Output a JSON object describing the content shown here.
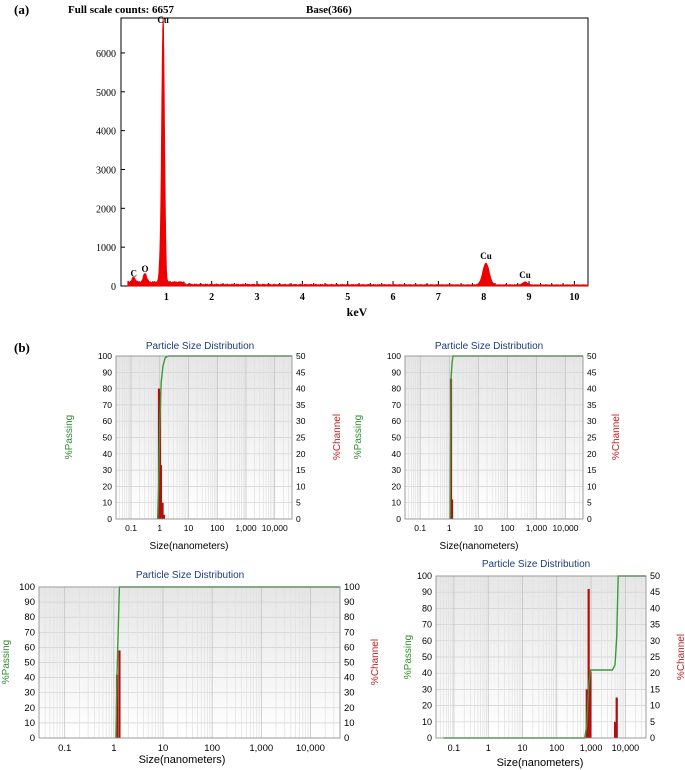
{
  "figure": {
    "panel_a_label": "(a)",
    "panel_b_label": "(b)"
  },
  "chart_data": [
    {
      "type": "line",
      "panel": "(a)",
      "header_left": "Full scale counts: 6657",
      "header_right": "Base(366)",
      "xlabel": "keV",
      "ylabel": "",
      "xlim": [
        0,
        10.3
      ],
      "ylim": [
        0,
        6900
      ],
      "x_ticks": [
        1,
        2,
        3,
        4,
        5,
        6,
        7,
        8,
        9,
        10
      ],
      "y_ticks": [
        0,
        1000,
        2000,
        3000,
        4000,
        5000,
        6000
      ],
      "color": "#ee0000",
      "peaks": [
        {
          "label": "C",
          "x": 0.28,
          "y": 120
        },
        {
          "label": "O",
          "x": 0.53,
          "y": 230
        },
        {
          "label": "Cu",
          "x": 0.93,
          "y": 6640
        },
        {
          "label": "Cu",
          "x": 8.05,
          "y": 560
        },
        {
          "label": "Cu",
          "x": 8.91,
          "y": 75
        }
      ]
    },
    {
      "type": "bar",
      "title": "Particle Size Distribution",
      "xlabel": "Size(nanometers)",
      "ylabel_left": "%Passing",
      "ylabel_right": "%Channel",
      "x_scale": "log",
      "xlim": [
        0.03,
        40000
      ],
      "x_ticks": [
        "0.1",
        "1",
        "10",
        "100",
        "1,000",
        "10,000"
      ],
      "y_left": [
        0,
        10,
        20,
        30,
        40,
        50,
        60,
        70,
        80,
        90,
        100
      ],
      "y_right": [
        0,
        5,
        10,
        15,
        20,
        25,
        30,
        35,
        40,
        45,
        50
      ],
      "channel_bars": [
        {
          "x": 0.94,
          "y": 40
        },
        {
          "x": 1.02,
          "y": 39
        },
        {
          "x": 1.1,
          "y": 16.5
        },
        {
          "x": 1.25,
          "y": 5
        },
        {
          "x": 1.4,
          "y": 1.3
        }
      ],
      "passing_line": [
        {
          "x": 0.84,
          "y": 0
        },
        {
          "x": 0.92,
          "y": 22
        },
        {
          "x": 1.0,
          "y": 58
        },
        {
          "x": 1.12,
          "y": 84
        },
        {
          "x": 1.3,
          "y": 94
        },
        {
          "x": 1.55,
          "y": 99
        },
        {
          "x": 2.0,
          "y": 100
        },
        {
          "x": 40000,
          "y": 100
        }
      ]
    },
    {
      "type": "bar",
      "title": "Particle Size Distribution",
      "xlabel": "Size(nanometers)",
      "ylabel_left": "%Passing",
      "ylabel_right": "%Channel",
      "x_scale": "log",
      "xlim": [
        0.03,
        40000
      ],
      "x_ticks": [
        "0.1",
        "1",
        "10",
        "100",
        "1,000",
        "10,000"
      ],
      "y_left": [
        0,
        10,
        20,
        30,
        40,
        50,
        60,
        70,
        80,
        90,
        100
      ],
      "y_right": [
        0,
        5,
        10,
        15,
        20,
        25,
        30,
        35,
        40,
        45,
        50
      ],
      "channel_bars": [
        {
          "x": 1.15,
          "y": 43
        },
        {
          "x": 1.25,
          "y": 6
        }
      ],
      "passing_line": [
        {
          "x": 1.08,
          "y": 0
        },
        {
          "x": 1.15,
          "y": 86
        },
        {
          "x": 1.25,
          "y": 96
        },
        {
          "x": 1.35,
          "y": 100
        },
        {
          "x": 40000,
          "y": 100
        }
      ]
    },
    {
      "type": "bar",
      "title": "Particle Size Distribution",
      "xlabel": "Size(nanometers)",
      "ylabel_left": "%Passing",
      "ylabel_right": "%Channel",
      "x_scale": "log",
      "xlim": [
        0.03,
        40000
      ],
      "x_ticks": [
        "0.1",
        "1",
        "10",
        "100",
        "1,000",
        "10,000"
      ],
      "y_left": [
        0,
        10,
        20,
        30,
        40,
        50,
        60,
        70,
        80,
        90,
        100
      ],
      "y_right": [
        0,
        10,
        20,
        30,
        40,
        50,
        60,
        70,
        80,
        90,
        100
      ],
      "channel_bars": [
        {
          "x": 1.16,
          "y": 42
        },
        {
          "x": 1.3,
          "y": 58
        }
      ],
      "passing_line": [
        {
          "x": 1.1,
          "y": 0
        },
        {
          "x": 1.16,
          "y": 42
        },
        {
          "x": 1.3,
          "y": 100
        },
        {
          "x": 40000,
          "y": 100
        }
      ]
    },
    {
      "type": "bar",
      "title": "Particle Size Distribution",
      "xlabel": "Size(nanometers)",
      "ylabel_left": "%Passing",
      "ylabel_right": "%Channel",
      "x_scale": "log",
      "xlim": [
        0.03,
        40000
      ],
      "x_ticks": [
        "0.1",
        "1",
        "10",
        "100",
        "1,000",
        "10,000"
      ],
      "y_left": [
        0,
        10,
        20,
        30,
        40,
        50,
        60,
        70,
        80,
        90,
        100
      ],
      "y_right": [
        0,
        5,
        10,
        15,
        20,
        25,
        30,
        35,
        40,
        45,
        50
      ],
      "channel_bars": [
        {
          "x": 750,
          "y": 15
        },
        {
          "x": 850,
          "y": 46
        },
        {
          "x": 960,
          "y": 20.5
        },
        {
          "x": 5000,
          "y": 5
        },
        {
          "x": 5600,
          "y": 12.5
        }
      ],
      "passing_line": [
        {
          "x": 0.05,
          "y": 0
        },
        {
          "x": 650,
          "y": 0
        },
        {
          "x": 750,
          "y": 8
        },
        {
          "x": 850,
          "y": 32
        },
        {
          "x": 960,
          "y": 42
        },
        {
          "x": 1300,
          "y": 42
        },
        {
          "x": 4200,
          "y": 42
        },
        {
          "x": 5000,
          "y": 45
        },
        {
          "x": 5600,
          "y": 62
        },
        {
          "x": 6200,
          "y": 100
        },
        {
          "x": 40000,
          "y": 100
        }
      ]
    }
  ]
}
